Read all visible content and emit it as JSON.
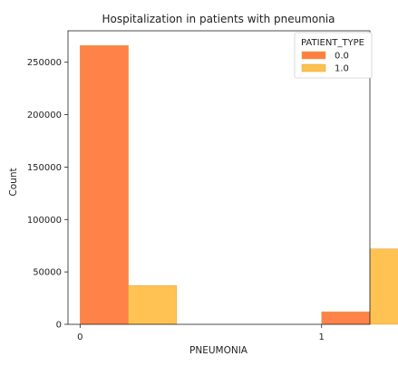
{
  "chart_data": {
    "type": "bar",
    "title": "Hospitalization in patients with pneumonia",
    "xlabel": "PNEUMONIA",
    "ylabel": "Count",
    "categories": [
      "0",
      "1"
    ],
    "series": [
      {
        "name": "0.0",
        "values": [
          266000,
          12000
        ],
        "color": "#ff7f42"
      },
      {
        "name": "1.0",
        "values": [
          37000,
          72000
        ],
        "color": "#ffc04d"
      }
    ],
    "ylim": [
      0,
      280000
    ],
    "yticks": [
      0,
      50000,
      100000,
      150000,
      200000,
      250000
    ],
    "xlim": [
      -0.05,
      1.2
    ],
    "legend": {
      "title": "PATIENT_TYPE",
      "placement": "top-right"
    },
    "grid": false
  }
}
